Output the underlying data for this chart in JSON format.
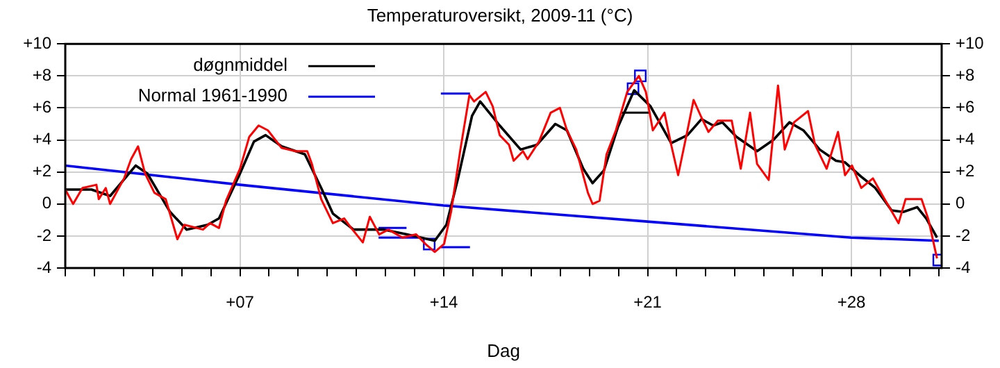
{
  "chart_data": {
    "type": "line",
    "title": "Temperaturoversikt, 2009-11 (°C)",
    "xlabel": "Dag",
    "xlim": [
      1,
      31.1
    ],
    "xticks": [
      {
        "value": 1,
        "label": null
      },
      {
        "value": 2,
        "label": null
      },
      {
        "value": 3,
        "label": null
      },
      {
        "value": 4,
        "label": null
      },
      {
        "value": 5,
        "label": null
      },
      {
        "value": 6,
        "label": null
      },
      {
        "value": 7,
        "label": "+07"
      },
      {
        "value": 8,
        "label": null
      },
      {
        "value": 9,
        "label": null
      },
      {
        "value": 10,
        "label": null
      },
      {
        "value": 11,
        "label": null
      },
      {
        "value": 12,
        "label": null
      },
      {
        "value": 13,
        "label": null
      },
      {
        "value": 14,
        "label": "+14"
      },
      {
        "value": 15,
        "label": null
      },
      {
        "value": 16,
        "label": null
      },
      {
        "value": 17,
        "label": null
      },
      {
        "value": 18,
        "label": null
      },
      {
        "value": 19,
        "label": null
      },
      {
        "value": 20,
        "label": null
      },
      {
        "value": 21,
        "label": "+21"
      },
      {
        "value": 22,
        "label": null
      },
      {
        "value": 23,
        "label": null
      },
      {
        "value": 24,
        "label": null
      },
      {
        "value": 25,
        "label": null
      },
      {
        "value": 26,
        "label": null
      },
      {
        "value": 27,
        "label": null
      },
      {
        "value": 28,
        "label": "+28"
      },
      {
        "value": 29,
        "label": null
      },
      {
        "value": 30,
        "label": null
      },
      {
        "value": 31,
        "label": null
      }
    ],
    "ylim": [
      -4,
      10
    ],
    "yticks": [
      -4,
      -2,
      0,
      {
        "value": 2,
        "label": "+2"
      },
      {
        "value": 4,
        "label": "+4"
      },
      {
        "value": 6,
        "label": "+6"
      },
      {
        "value": 8,
        "label": "+8"
      },
      {
        "value": 10,
        "label": "+10"
      }
    ],
    "y2lim": [
      -4,
      10
    ],
    "y2ticks": [
      -4,
      -2,
      0,
      {
        "value": 2,
        "label": "+2"
      },
      {
        "value": 4,
        "label": "+4"
      },
      {
        "value": 6,
        "label": "+6"
      },
      {
        "value": 8,
        "label": "+8"
      },
      {
        "value": 10,
        "label": "+10"
      }
    ],
    "grid": true,
    "legend": "top left",
    "marker": "none",
    "line_style": "solid",
    "series": [
      {
        "color": "#ff0000",
        "x": [
          1.0,
          1.27,
          1.59,
          2.07,
          2.15,
          2.39,
          2.54,
          3.02,
          3.26,
          3.5,
          3.74,
          4.06,
          4.45,
          4.85,
          5.09,
          5.73,
          5.97,
          6.28,
          6.52,
          7.0,
          7.32,
          7.64,
          7.96,
          8.43,
          8.91,
          9.31,
          9.47,
          9.79,
          10.19,
          10.58,
          10.82,
          11.22,
          11.46,
          11.78,
          12.1,
          12.58,
          13.05,
          13.37,
          13.69,
          14.01,
          14.25,
          14.57,
          14.88,
          15.04,
          15.44,
          15.68,
          15.92,
          16.24,
          16.4,
          16.72,
          16.88,
          17.27,
          17.67,
          17.99,
          18.23,
          18.55,
          18.95,
          19.11,
          19.35,
          19.59,
          19.91,
          20.3,
          20.7,
          20.94,
          21.18,
          21.58,
          21.81,
          22.05,
          22.37,
          22.58,
          22.85,
          23.09,
          23.41,
          23.89,
          24.2,
          24.52,
          24.76,
          25.16,
          25.48,
          25.71,
          26.03,
          26.51,
          26.75,
          27.15,
          27.54,
          27.78,
          28.02,
          28.34,
          28.74,
          29.14,
          29.62,
          29.86,
          30.41,
          30.65,
          30.94
        ],
        "values": [
          0.9,
          0,
          1.0,
          1.2,
          0.3,
          1.0,
          0,
          1.6,
          2.8,
          3.6,
          1.9,
          0.7,
          0.3,
          -2.2,
          -1.3,
          -1.6,
          -1.2,
          -1.5,
          0.2,
          2.2,
          4.2,
          4.9,
          4.6,
          3.5,
          3.3,
          3.3,
          2.5,
          0.3,
          -1.2,
          -0.9,
          -1.5,
          -2.4,
          -0.8,
          -1.9,
          -1.6,
          -2.1,
          -1.9,
          -2.5,
          -3.0,
          -2.5,
          -0.5,
          3.4,
          6.8,
          6.4,
          7.0,
          6.1,
          4.3,
          3.7,
          2.7,
          3.3,
          2.8,
          3.9,
          5.7,
          6.0,
          4.6,
          3.4,
          0.7,
          0,
          0.2,
          3.1,
          4.6,
          7.0,
          8.0,
          7.0,
          4.6,
          5.7,
          3.7,
          1.8,
          4.6,
          6.5,
          5.4,
          4.5,
          5.2,
          5.2,
          2.2,
          5.7,
          2.5,
          1.5,
          7.4,
          3.4,
          5.1,
          5.8,
          3.7,
          2.2,
          4.5,
          1.8,
          2.4,
          1.0,
          1.6,
          0.3,
          -1.2,
          0.3,
          0.3,
          -1.0,
          -3.4
        ]
      },
      {
        "name": "døgnmiddel",
        "color": "#000000",
        "x": [
          1.0,
          1.9,
          2.54,
          3.42,
          3.82,
          4.6,
          5.17,
          5.89,
          6.28,
          7.0,
          7.48,
          7.88,
          8.43,
          9.23,
          9.79,
          10.19,
          10.9,
          11.62,
          11.94,
          12.73,
          13.69,
          14.09,
          14.49,
          14.97,
          15.25,
          15.92,
          16.64,
          17.2,
          17.83,
          18.23,
          18.79,
          19.11,
          19.5,
          19.98,
          20.54,
          21.1,
          21.81,
          22.37,
          22.85,
          23.25,
          23.57,
          24.05,
          24.76,
          25.32,
          25.87,
          26.35,
          26.91,
          27.47,
          27.78,
          28.34,
          28.82,
          29.38,
          29.78,
          30.26,
          30.57,
          30.94
        ],
        "values": [
          0.9,
          0.9,
          0.5,
          2.4,
          1.9,
          -0.5,
          -1.6,
          -1.3,
          -0.9,
          1.9,
          3.9,
          4.3,
          3.6,
          3.1,
          1.0,
          -0.6,
          -1.6,
          -1.6,
          -1.6,
          -1.9,
          -2.3,
          -1.3,
          1.6,
          5.5,
          6.4,
          4.9,
          3.4,
          3.7,
          5.0,
          4.6,
          2.2,
          1.3,
          2.1,
          4.8,
          7.1,
          6.1,
          3.8,
          4.3,
          5.3,
          4.9,
          5.1,
          4.2,
          3.3,
          4.0,
          5.1,
          4.6,
          3.4,
          2.7,
          2.6,
          1.7,
          1.0,
          -0.4,
          -0.5,
          -0.2,
          -0.9,
          -2.1
        ]
      },
      {
        "name": "Normal 1961-1990",
        "color": "#0000ff",
        "x": [
          1,
          7,
          14,
          21,
          28,
          31
        ],
        "values": [
          2.4,
          1.2,
          -0.1,
          -1.1,
          -2.1,
          -2.3
        ]
      },
      {
        "color": "#0000ff",
        "x": [
          11.76,
          12.72
        ],
        "values": [
          -1.5,
          -1.5
        ]
      },
      {
        "color": "#0000ff",
        "x": [
          11.76,
          13.2
        ],
        "values": [
          -2.1,
          -2.1
        ]
      },
      {
        "color": "#0000ff",
        "x": [
          13.9,
          14.9
        ],
        "values": [
          6.9,
          6.9
        ]
      },
      {
        "color": "#0000ff",
        "x": [
          13.9,
          14.9
        ],
        "values": [
          -2.7,
          -2.7
        ]
      },
      {
        "color": "#000000",
        "x": [
          20.1,
          21.05
        ],
        "values": [
          5.7,
          5.7
        ]
      },
      {
        "type": "scatter",
        "marker": "square",
        "color": "#0000ff",
        "x": [
          13.5,
          20.5,
          20.75,
          31.0
        ],
        "values": [
          -2.5,
          7.2,
          8.0,
          -3.5
        ]
      }
    ]
  }
}
